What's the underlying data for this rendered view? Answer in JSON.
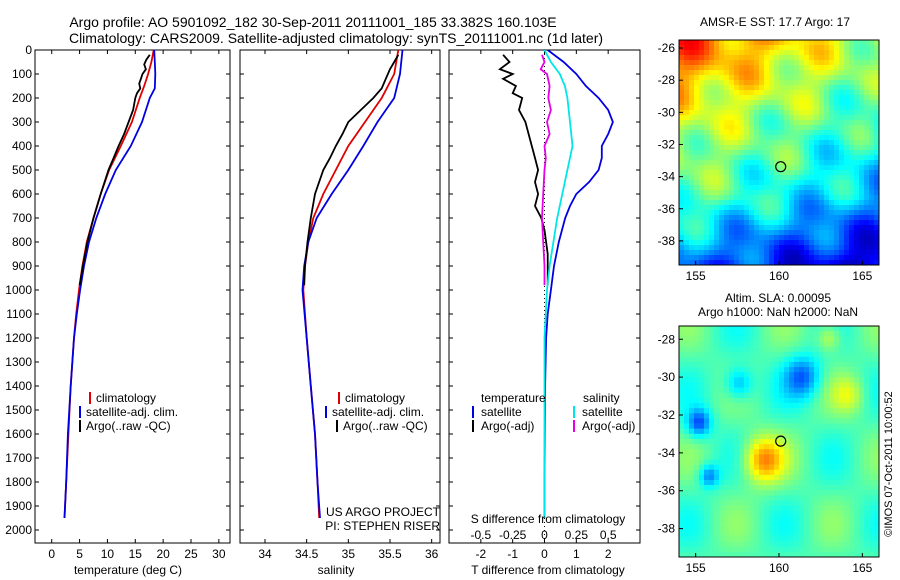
{
  "title": {
    "line1": "Argo profile: AO 5901092_182 30-Sep-2011 20111001_185 33.382S 160.103E",
    "line2": "Climatology: CARS2009. Satellite-adjusted climatology: synTS_20111001.nc (1d later)"
  },
  "colors": {
    "climatology": "#e00000",
    "satellite": "#0000e0",
    "argo": "#000000",
    "sal_satellite": "#00e6e6",
    "sal_argo": "#e600e6"
  },
  "chart_data": [
    {
      "type": "line",
      "name": "temperature",
      "xlabel": "temperature (deg C)",
      "ylabel": "",
      "xlim": [
        -3,
        32
      ],
      "ylim": [
        2000,
        0
      ],
      "xticks": [
        "0",
        "5",
        "10",
        "15",
        "20",
        "25",
        "30"
      ],
      "yticks": [
        "0",
        "100",
        "200",
        "300",
        "400",
        "500",
        "600",
        "700",
        "800",
        "900",
        "1000",
        "1100",
        "1200",
        "1300",
        "1400",
        "1500",
        "1600",
        "1700",
        "1800",
        "1900",
        "2000"
      ],
      "legend": [
        "climatology",
        "satellite-adj. clim.",
        "Argo(..raw -QC)"
      ],
      "series": [
        {
          "name": "climatology",
          "color": "#e00000",
          "depth": [
            0,
            50,
            100,
            150,
            200,
            300,
            400,
            500,
            600,
            700,
            800,
            900,
            1000,
            1100,
            1200,
            1400,
            1600,
            1800,
            1950
          ],
          "values": [
            18.3,
            17.9,
            17.3,
            16.6,
            15.8,
            14.4,
            12.4,
            10.3,
            8.8,
            7.5,
            6.3,
            5.5,
            4.9,
            4.4,
            4.0,
            3.4,
            3.0,
            2.6,
            2.3
          ]
        },
        {
          "name": "satellite-adj. clim.",
          "color": "#0000e0",
          "depth": [
            0,
            50,
            100,
            160,
            200,
            300,
            400,
            500,
            600,
            700,
            800,
            900,
            1000,
            1100,
            1200,
            1400,
            1600,
            1800,
            1950
          ],
          "values": [
            18.4,
            18.5,
            18.6,
            18.5,
            17.6,
            16.2,
            14.2,
            11.5,
            9.6,
            8.0,
            6.7,
            5.8,
            5.1,
            4.5,
            4.0,
            3.4,
            2.9,
            2.6,
            2.3
          ]
        },
        {
          "name": "Argo(..raw -QC)",
          "color": "#000000",
          "depth": [
            20,
            40,
            60,
            80,
            100,
            120,
            140,
            160,
            180,
            200,
            250,
            300,
            350,
            400,
            450,
            500,
            600,
            700,
            800,
            900,
            980
          ],
          "values": [
            17.6,
            17.0,
            16.6,
            16.9,
            16.3,
            16.0,
            15.7,
            15.9,
            15.3,
            15.0,
            14.6,
            13.8,
            13.0,
            12.0,
            11.1,
            10.2,
            8.8,
            7.5,
            6.4,
            5.6,
            5.0
          ]
        }
      ]
    },
    {
      "type": "line",
      "name": "salinity",
      "xlabel": "salinity",
      "xlim": [
        33.7,
        36.1
      ],
      "ylim": [
        2000,
        0
      ],
      "xticks": [
        "34",
        "34.5",
        "35",
        "35.5",
        "36"
      ],
      "legend": [
        "climatology",
        "satellite-adj. clim.",
        "Argo(..raw -QC)"
      ],
      "series": [
        {
          "name": "climatology",
          "color": "#e00000",
          "depth": [
            0,
            100,
            200,
            300,
            400,
            500,
            600,
            700,
            800,
            900,
            1000,
            1200,
            1400,
            1600,
            1800,
            1950
          ],
          "values": [
            35.6,
            35.55,
            35.4,
            35.2,
            35.0,
            34.85,
            34.7,
            34.58,
            34.52,
            34.48,
            34.46,
            34.5,
            34.55,
            34.6,
            34.63,
            34.65
          ]
        },
        {
          "name": "satellite-adj. clim.",
          "color": "#0000e0",
          "depth": [
            0,
            100,
            200,
            300,
            400,
            500,
            600,
            700,
            800,
            900,
            1000,
            1200,
            1400,
            1600,
            1800,
            1950
          ],
          "values": [
            35.65,
            35.62,
            35.55,
            35.35,
            35.18,
            35.0,
            34.8,
            34.62,
            34.52,
            34.47,
            34.45,
            34.5,
            34.55,
            34.6,
            34.63,
            34.66
          ]
        },
        {
          "name": "Argo(..raw -QC)",
          "color": "#000000",
          "depth": [
            20,
            50,
            80,
            120,
            160,
            200,
            250,
            300,
            350,
            400,
            450,
            500,
            600,
            700,
            800,
            900,
            980
          ],
          "values": [
            35.6,
            35.55,
            35.5,
            35.45,
            35.4,
            35.3,
            35.15,
            35.0,
            34.93,
            34.85,
            34.78,
            34.7,
            34.6,
            34.55,
            34.51,
            34.48,
            34.47
          ]
        }
      ],
      "annotation": [
        "US ARGO PROJECT",
        "PI: STEPHEN RISER"
      ]
    },
    {
      "type": "line",
      "name": "difference",
      "xlabel": "T difference from climatology",
      "x2label": "S difference from climatology",
      "ylim": [
        2000,
        0
      ],
      "xlim": [
        -3,
        3
      ],
      "xticks": [
        "-2",
        "-1",
        "0",
        "1",
        "2"
      ],
      "x2lim": [
        -0.75,
        0.75
      ],
      "x2ticks": [
        "-0.5",
        "-0.25",
        "0",
        "0.25",
        "0.5"
      ],
      "legend_temperature": {
        "heading": "temperature",
        "items": [
          "satellite",
          "Argo(-adj)"
        ]
      },
      "legend_salinity": {
        "heading": "salinity",
        "items": [
          "satellite",
          "Argo(-adj)"
        ]
      },
      "series": [
        {
          "name": "T satellite",
          "color": "#0000e0",
          "depth": [
            0,
            50,
            100,
            150,
            200,
            250,
            300,
            350,
            400,
            450,
            500,
            550,
            600,
            650,
            700,
            800,
            900,
            1000,
            1100,
            1200,
            1400,
            1600,
            1800,
            1950
          ],
          "values": [
            0.1,
            0.6,
            1.0,
            1.3,
            1.7,
            2.0,
            2.15,
            2.0,
            1.8,
            1.8,
            1.7,
            1.4,
            1.0,
            0.8,
            0.65,
            0.45,
            0.3,
            0.2,
            0.1,
            0.05,
            0.02,
            0.01,
            0.0,
            0.0
          ]
        },
        {
          "name": "T Argo(-adj)",
          "color": "#000000",
          "depth": [
            20,
            50,
            80,
            100,
            120,
            150,
            180,
            200,
            250,
            300,
            350,
            400,
            450,
            500,
            550,
            600,
            650,
            700,
            750,
            800,
            850,
            900,
            980
          ],
          "values": [
            -1.3,
            -1.1,
            -1.4,
            -1.0,
            -1.3,
            -0.9,
            -1.0,
            -0.7,
            -0.8,
            -0.6,
            -0.5,
            -0.4,
            -0.3,
            -0.2,
            -0.3,
            -0.2,
            -0.3,
            -0.1,
            0.0,
            0.05,
            0.1,
            0.1,
            0.1
          ]
        },
        {
          "name": "S satellite",
          "color": "#00e6e6",
          "depth": [
            0,
            50,
            100,
            150,
            200,
            300,
            400,
            500,
            600,
            700,
            800,
            900,
            1000,
            1200,
            1400,
            1600,
            1800,
            1950
          ],
          "values": [
            0.0,
            0.05,
            0.12,
            0.16,
            0.18,
            0.2,
            0.22,
            0.18,
            0.14,
            0.1,
            0.07,
            0.04,
            0.02,
            0.0,
            0.0,
            0.0,
            0.0,
            0.0
          ]
        },
        {
          "name": "S Argo(-adj)",
          "color": "#e600e6",
          "depth": [
            20,
            50,
            80,
            100,
            150,
            200,
            250,
            300,
            350,
            400,
            450,
            500,
            600,
            700,
            800,
            900,
            980
          ],
          "values": [
            -0.02,
            0.0,
            -0.03,
            0.02,
            0.04,
            0.03,
            0.05,
            0.02,
            0.04,
            0.0,
            0.01,
            0.0,
            -0.01,
            -0.02,
            -0.01,
            0.0,
            0.0
          ]
        }
      ]
    },
    {
      "type": "heatmap",
      "name": "sst_map",
      "title": "AMSR-E SST: 17.7 Argo: 17",
      "xlim": [
        154,
        166
      ],
      "ylim": [
        -39.5,
        -25.5
      ],
      "xticks": [
        "155",
        "160",
        "165"
      ],
      "yticks": [
        "-26",
        "-28",
        "-30",
        "-32",
        "-34",
        "-36",
        "-38"
      ],
      "float_position": [
        160.103,
        -33.382
      ]
    },
    {
      "type": "heatmap",
      "name": "sla_map",
      "title_line1": "Altim. SLA: 0.00095",
      "title_line2": "Argo h1000: NaN h2000: NaN",
      "xlim": [
        154,
        166
      ],
      "ylim": [
        -39.5,
        -27.3
      ],
      "xticks": [
        "155",
        "160",
        "165"
      ],
      "yticks": [
        "-28",
        "-30",
        "-32",
        "-34",
        "-36",
        "-38"
      ],
      "float_position": [
        160.103,
        -33.382
      ]
    }
  ],
  "credit": "©IMOS 07-Oct-2011 10:00:52"
}
